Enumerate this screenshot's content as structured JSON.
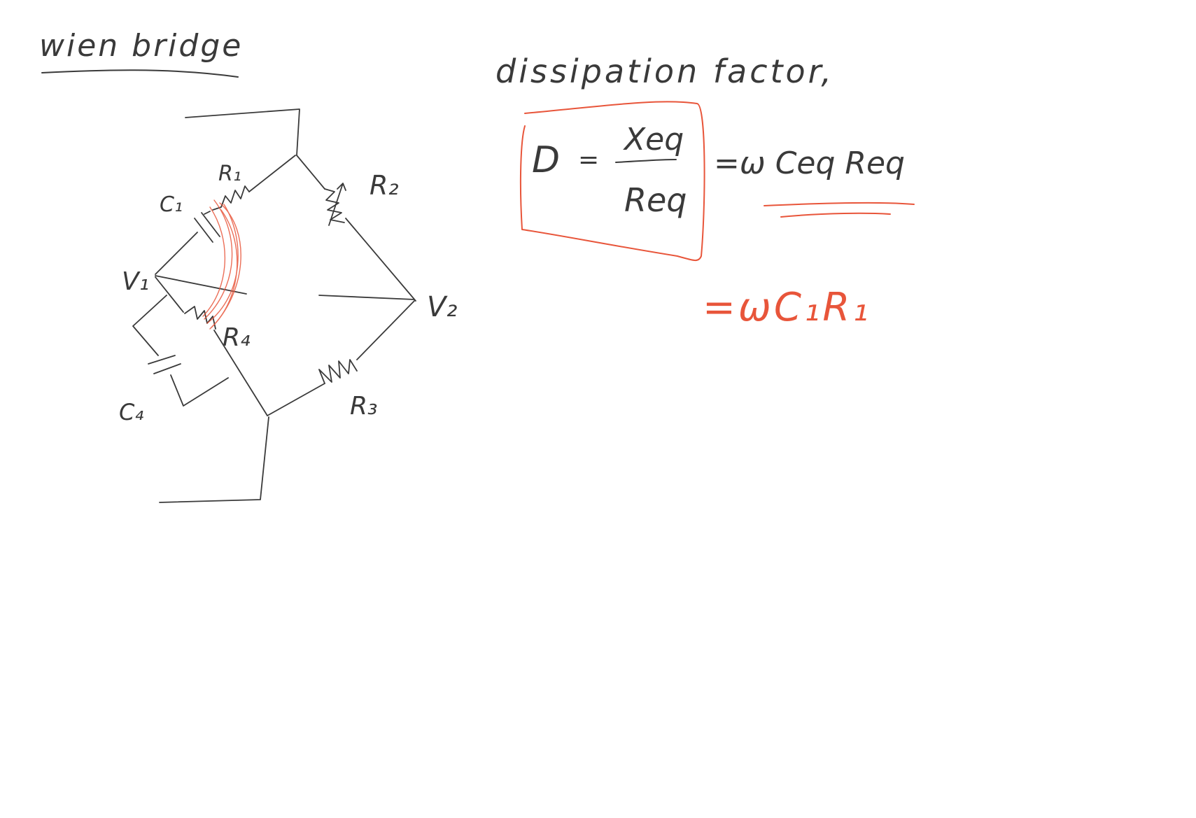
{
  "heading": {
    "text": "wien bridge"
  },
  "circuit": {
    "labels": {
      "r1": "R₁",
      "r2": "R₂",
      "r3": "R₃",
      "r4": "R₄",
      "c1": "C₁",
      "c4": "C₄",
      "v1": "V₁",
      "v2": "V₂"
    }
  },
  "notes": {
    "dissipation_title": "dissipation factor,",
    "d_symbol": "D",
    "equals": "=",
    "numerator": "Xeq",
    "denominator": "Req",
    "rhs": "=ω Ceq Req",
    "result": "=ωC₁R₁"
  },
  "colors": {
    "ink": "#3a3a3a",
    "accent": "#e8553a"
  }
}
